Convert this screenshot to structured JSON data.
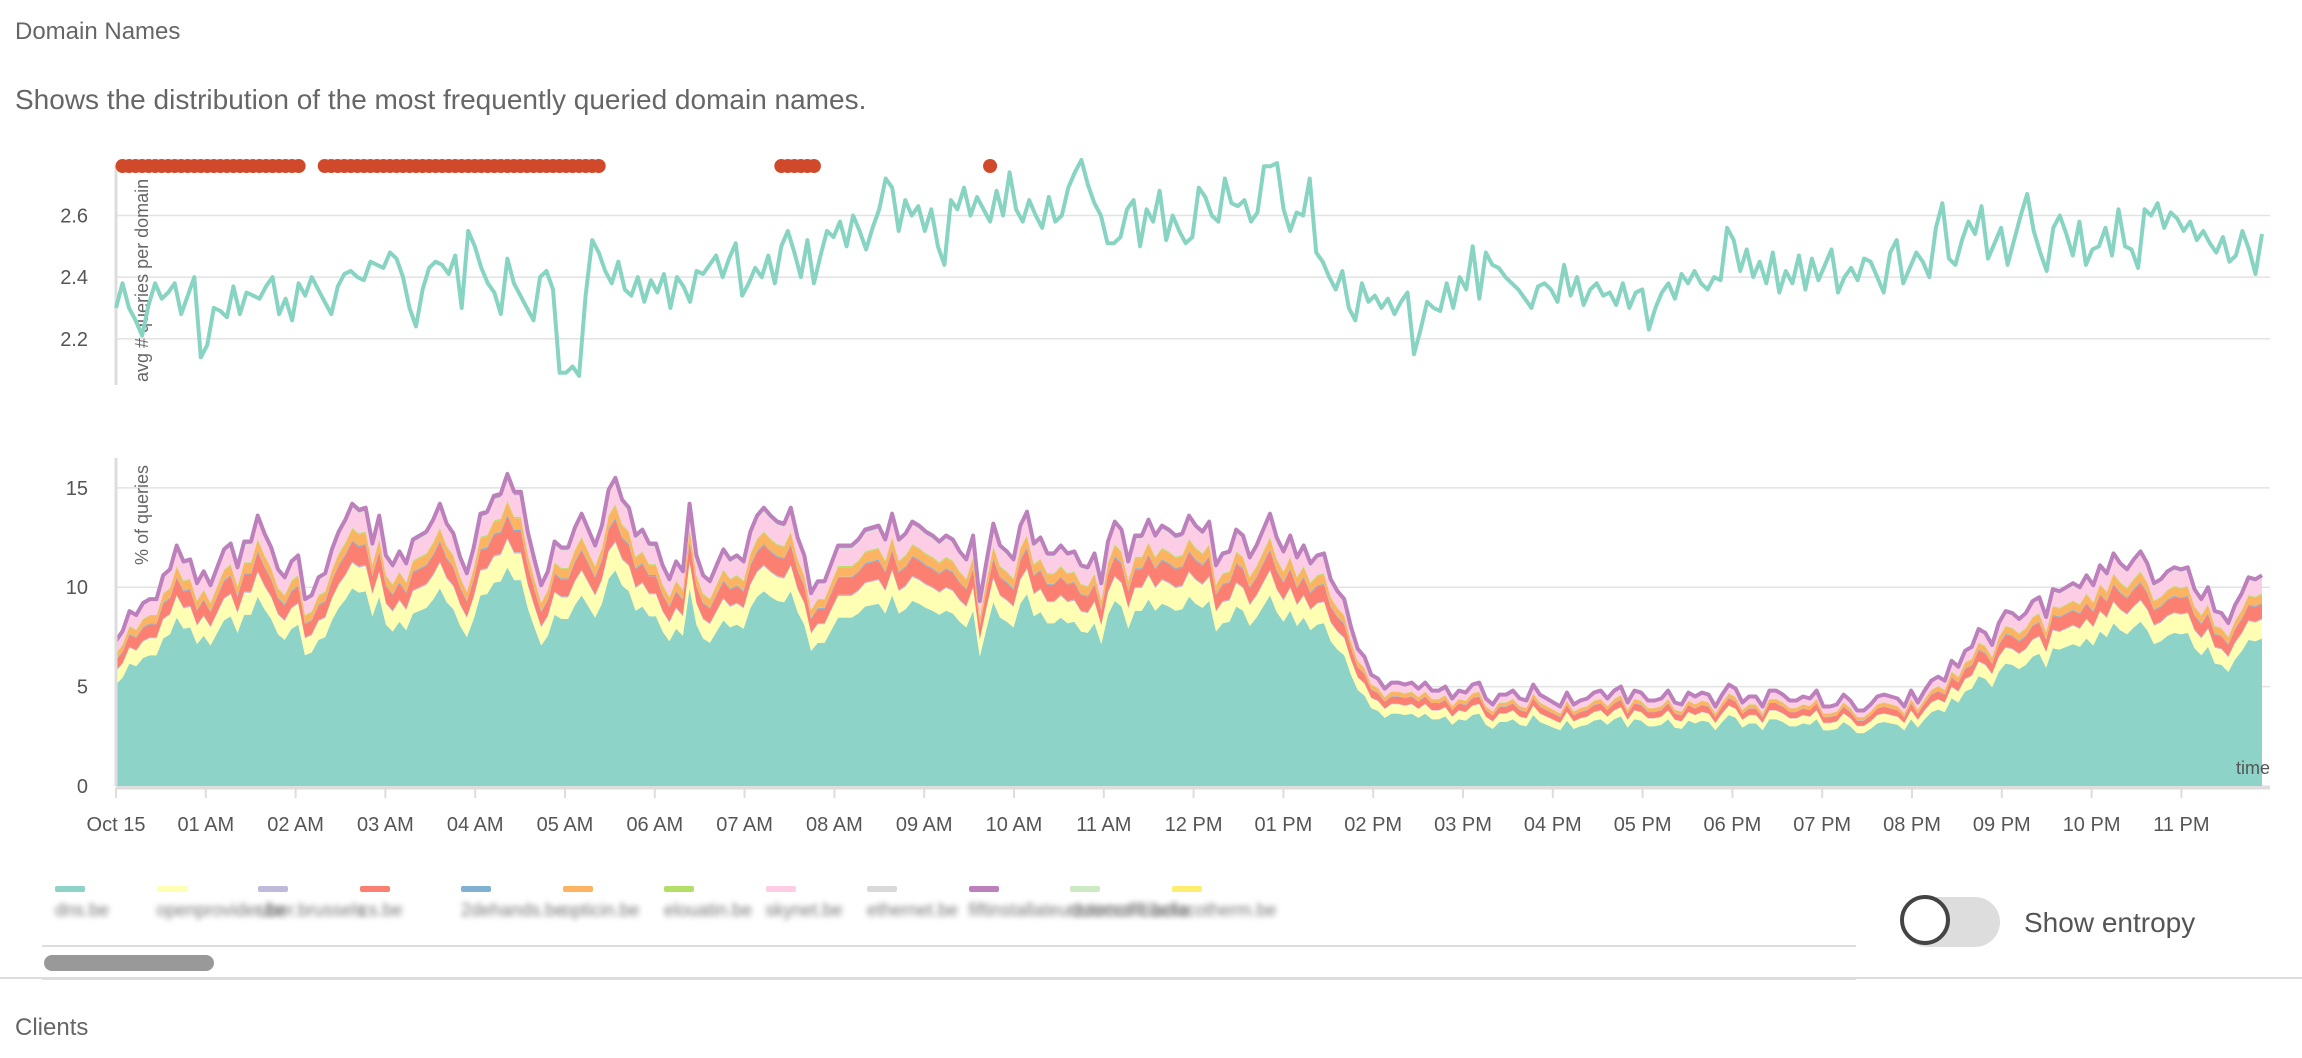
{
  "section": {
    "title": "Domain Names",
    "description": "Shows the distribution of the most frequently queried domain names."
  },
  "chart_data": [
    {
      "type": "line",
      "ylabel": "avg # queries per domain",
      "ylim": [
        2.05,
        2.78
      ],
      "yticks": [
        2.2,
        2.4,
        2.6
      ],
      "grid": true,
      "color": "#88d4c3",
      "anomaly_color": "#d0492a",
      "anomaly_indices": [
        1,
        2,
        3,
        4,
        5,
        6,
        7,
        8,
        9,
        10,
        11,
        12,
        13,
        14,
        15,
        16,
        17,
        18,
        19,
        20,
        21,
        22,
        23,
        24,
        25,
        26,
        27,
        28,
        32,
        33,
        34,
        35,
        36,
        37,
        38,
        39,
        40,
        41,
        42,
        43,
        44,
        45,
        46,
        47,
        48,
        49,
        50,
        51,
        52,
        53,
        54,
        55,
        56,
        57,
        58,
        59,
        60,
        61,
        62,
        63,
        64,
        65,
        66,
        67,
        68,
        69,
        70,
        71,
        72,
        73,
        74,
        102,
        103,
        104,
        105,
        106,
        107,
        134
      ],
      "values": [
        2.3,
        2.38,
        2.3,
        2.26,
        2.21,
        2.31,
        2.38,
        2.33,
        2.35,
        2.38,
        2.28,
        2.34,
        2.4,
        2.14,
        2.18,
        2.3,
        2.29,
        2.27,
        2.37,
        2.28,
        2.35,
        2.34,
        2.33,
        2.37,
        2.4,
        2.28,
        2.33,
        2.26,
        2.38,
        2.34,
        2.4,
        2.36,
        2.32,
        2.28,
        2.37,
        2.41,
        2.42,
        2.4,
        2.39,
        2.45,
        2.44,
        2.43,
        2.48,
        2.46,
        2.4,
        2.3,
        2.24,
        2.36,
        2.43,
        2.45,
        2.44,
        2.41,
        2.47,
        2.3,
        2.55,
        2.5,
        2.43,
        2.38,
        2.35,
        2.28,
        2.46,
        2.38,
        2.34,
        2.3,
        2.26,
        2.4,
        2.42,
        2.36,
        2.09,
        2.09,
        2.11,
        2.08,
        2.34,
        2.52,
        2.48,
        2.42,
        2.38,
        2.45,
        2.36,
        2.34,
        2.4,
        2.32,
        2.39,
        2.35,
        2.41,
        2.3,
        2.4,
        2.37,
        2.32,
        2.42,
        2.41,
        2.44,
        2.47,
        2.4,
        2.46,
        2.51,
        2.34,
        2.38,
        2.43,
        2.4,
        2.47,
        2.38,
        2.5,
        2.55,
        2.48,
        2.4,
        2.52,
        2.38,
        2.47,
        2.55,
        2.53,
        2.58,
        2.5,
        2.6,
        2.55,
        2.49,
        2.56,
        2.62,
        2.72,
        2.69,
        2.55,
        2.65,
        2.6,
        2.63,
        2.55,
        2.62,
        2.5,
        2.44,
        2.65,
        2.62,
        2.69,
        2.6,
        2.66,
        2.62,
        2.58,
        2.68,
        2.6,
        2.74,
        2.62,
        2.58,
        2.65,
        2.6,
        2.56,
        2.66,
        2.58,
        2.6,
        2.69,
        2.74,
        2.78,
        2.7,
        2.64,
        2.6,
        2.51,
        2.51,
        2.53,
        2.62,
        2.65,
        2.5,
        2.62,
        2.58,
        2.68,
        2.52,
        2.6,
        2.55,
        2.51,
        2.53,
        2.69,
        2.66,
        2.6,
        2.58,
        2.72,
        2.64,
        2.63,
        2.65,
        2.58,
        2.61,
        2.76,
        2.76,
        2.77,
        2.62,
        2.55,
        2.61,
        2.6,
        2.72,
        2.48,
        2.45,
        2.4,
        2.36,
        2.42,
        2.3,
        2.26,
        2.38,
        2.32,
        2.34,
        2.3,
        2.33,
        2.28,
        2.32,
        2.35,
        2.15,
        2.23,
        2.32,
        2.3,
        2.29,
        2.38,
        2.3,
        2.4,
        2.36,
        2.5,
        2.33,
        2.48,
        2.44,
        2.43,
        2.4,
        2.38,
        2.36,
        2.33,
        2.3,
        2.37,
        2.38,
        2.36,
        2.32,
        2.44,
        2.34,
        2.4,
        2.31,
        2.36,
        2.38,
        2.34,
        2.35,
        2.31,
        2.38,
        2.3,
        2.35,
        2.36,
        2.23,
        2.3,
        2.35,
        2.38,
        2.33,
        2.41,
        2.38,
        2.42,
        2.38,
        2.36,
        2.4,
        2.39,
        2.56,
        2.52,
        2.42,
        2.49,
        2.4,
        2.45,
        2.38,
        2.48,
        2.35,
        2.42,
        2.38,
        2.47,
        2.36,
        2.46,
        2.39,
        2.44,
        2.49,
        2.35,
        2.4,
        2.43,
        2.39,
        2.46,
        2.45,
        2.4,
        2.35,
        2.48,
        2.52,
        2.38,
        2.43,
        2.48,
        2.45,
        2.4,
        2.56,
        2.64,
        2.46,
        2.44,
        2.52,
        2.58,
        2.54,
        2.63,
        2.46,
        2.51,
        2.56,
        2.44,
        2.52,
        2.6,
        2.67,
        2.55,
        2.48,
        2.42,
        2.56,
        2.6,
        2.54,
        2.47,
        2.58,
        2.44,
        2.49,
        2.5,
        2.56,
        2.47,
        2.62,
        2.5,
        2.49,
        2.43,
        2.62,
        2.6,
        2.64,
        2.56,
        2.61,
        2.59,
        2.55,
        2.58,
        2.52,
        2.55,
        2.51,
        2.48,
        2.53,
        2.45,
        2.47,
        2.55,
        2.49,
        2.41,
        2.54
      ]
    },
    {
      "type": "area",
      "stacked": true,
      "ylabel": "% of queries",
      "xlabel": "time",
      "ylim": [
        0,
        16.5
      ],
      "yticks": [
        0,
        5,
        10,
        15
      ],
      "grid": true,
      "x_tick_labels": [
        "Oct 15",
        "01 AM",
        "02 AM",
        "03 AM",
        "04 AM",
        "05 AM",
        "06 AM",
        "07 AM",
        "08 AM",
        "09 AM",
        "10 AM",
        "11 AM",
        "12 PM",
        "01 PM",
        "02 PM",
        "03 PM",
        "04 PM",
        "05 PM",
        "06 PM",
        "07 PM",
        "08 PM",
        "09 PM",
        "10 PM",
        "11 PM"
      ],
      "total": [
        7.3,
        7.8,
        8.8,
        8.6,
        9.2,
        9.4,
        9.4,
        10.6,
        10.9,
        12.1,
        11.3,
        11.4,
        10.2,
        10.8,
        10.1,
        11.0,
        11.9,
        12.2,
        11.0,
        12.3,
        12.3,
        13.6,
        12.7,
        12.0,
        10.9,
        10.5,
        11.3,
        11.6,
        9.4,
        9.6,
        10.5,
        10.7,
        11.9,
        12.8,
        13.4,
        14.2,
        13.9,
        14.0,
        12.2,
        13.6,
        11.6,
        11.1,
        11.8,
        11.2,
        12.4,
        12.6,
        12.8,
        13.4,
        14.2,
        13.2,
        12.7,
        11.5,
        10.7,
        12.0,
        13.7,
        13.8,
        14.6,
        14.7,
        15.7,
        14.8,
        14.8,
        12.8,
        11.4,
        10.1,
        10.8,
        12.3,
        12.0,
        12.0,
        13.0,
        13.7,
        12.9,
        12.1,
        13.1,
        14.9,
        15.5,
        14.4,
        14.0,
        12.6,
        12.9,
        12.2,
        12.2,
        11.1,
        10.4,
        11.3,
        10.8,
        14.2,
        11.6,
        10.6,
        10.3,
        11.1,
        11.9,
        11.4,
        11.6,
        11.3,
        12.8,
        13.6,
        14.0,
        13.6,
        13.3,
        13.2,
        14.0,
        12.5,
        11.6,
        9.7,
        10.3,
        10.3,
        11.2,
        12.1,
        12.1,
        12.1,
        12.4,
        12.9,
        13.0,
        13.1,
        12.4,
        13.7,
        12.4,
        12.7,
        13.3,
        13.1,
        12.8,
        12.6,
        12.3,
        12.6,
        12.4,
        11.8,
        11.4,
        12.6,
        9.3,
        11.3,
        13.2,
        12.1,
        11.8,
        11.4,
        13.1,
        13.8,
        12.2,
        12.5,
        11.7,
        11.7,
        12.1,
        11.7,
        11.8,
        11.1,
        11.0,
        11.7,
        10.2,
        12.3,
        13.3,
        12.9,
        11.3,
        12.6,
        12.6,
        13.4,
        12.6,
        13.1,
        12.9,
        12.6,
        12.7,
        13.6,
        13.1,
        12.8,
        13.3,
        11.1,
        11.7,
        11.8,
        12.9,
        12.6,
        11.5,
        12.1,
        12.9,
        13.7,
        12.5,
        11.8,
        12.6,
        11.5,
        12.1,
        11.2,
        11.6,
        11.7,
        10.4,
        9.8,
        9.4,
        8.0,
        6.9,
        6.5,
        5.6,
        5.4,
        4.9,
        5.2,
        5.2,
        5.1,
        5.2,
        4.9,
        5.2,
        4.8,
        4.8,
        5.0,
        4.4,
        4.8,
        4.7,
        5.1,
        5.2,
        4.4,
        4.1,
        4.6,
        4.6,
        4.8,
        4.4,
        4.3,
        5.1,
        4.6,
        4.4,
        4.2,
        4.0,
        4.7,
        4.1,
        4.3,
        4.4,
        4.7,
        4.8,
        4.4,
        4.8,
        5.0,
        4.2,
        4.8,
        4.7,
        4.3,
        4.3,
        4.4,
        4.8,
        4.2,
        4.1,
        4.7,
        4.5,
        4.7,
        4.6,
        4.0,
        4.6,
        5.1,
        4.9,
        4.2,
        4.5,
        4.5,
        4.0,
        4.8,
        4.8,
        4.6,
        4.3,
        4.3,
        4.5,
        4.4,
        4.8,
        4.0,
        4.0,
        4.1,
        4.6,
        4.3,
        3.8,
        3.8,
        4.1,
        4.5,
        4.6,
        4.5,
        4.4,
        4.0,
        4.8,
        4.2,
        4.8,
        5.3,
        5.5,
        5.3,
        6.3,
        6.0,
        6.8,
        7.0,
        7.9,
        7.7,
        7.1,
        8.2,
        8.8,
        8.7,
        8.4,
        8.7,
        9.3,
        9.5,
        8.5,
        9.9,
        9.8,
        10.0,
        10.2,
        10.0,
        10.6,
        10.1,
        11.1,
        10.7,
        11.7,
        11.2,
        10.9,
        11.4,
        11.8,
        11.2,
        10.2,
        10.4,
        10.8,
        11.0,
        10.9,
        11.0,
        9.9,
        9.4,
        10.0,
        8.8,
        8.7,
        8.2,
        9.1,
        9.7,
        10.5,
        10.4,
        10.6
      ],
      "series": [
        {
          "name": "dns.be",
          "color": "#8dd3c7",
          "share": 0.7
        },
        {
          "name": "openprovider.be",
          "color": "#ffffb3",
          "share": 0.09
        },
        {
          "name": "uber.brussels",
          "color": "#bebada",
          "share": 0.005
        },
        {
          "name": "cs.be",
          "color": "#fb8072",
          "share": 0.07
        },
        {
          "name": "2dehands.be",
          "color": "#80b1d3",
          "share": 0.005
        },
        {
          "name": "opticin.be",
          "color": "#fdb462",
          "share": 0.04
        },
        {
          "name": "elouatin.be",
          "color": "#b3de69",
          "share": 0.005
        },
        {
          "name": "skynet.be",
          "color": "#fccde5",
          "share": 0.07
        },
        {
          "name": "ethernet.be",
          "color": "#d9d9d9",
          "share": 0.005
        },
        {
          "name": "fiftinstallateurzoomofffi.be",
          "color": "#bc80bd",
          "share": 0.01
        },
        {
          "name": "dutecco-clacke",
          "color": "#ccebc5",
          "share": 0.0
        },
        {
          "name": "facotherm.be",
          "color": "#ffed6f",
          "share": 0.0
        }
      ]
    }
  ],
  "toggle": {
    "label": "Show entropy",
    "on": false
  },
  "next_section": {
    "title": "Clients"
  }
}
